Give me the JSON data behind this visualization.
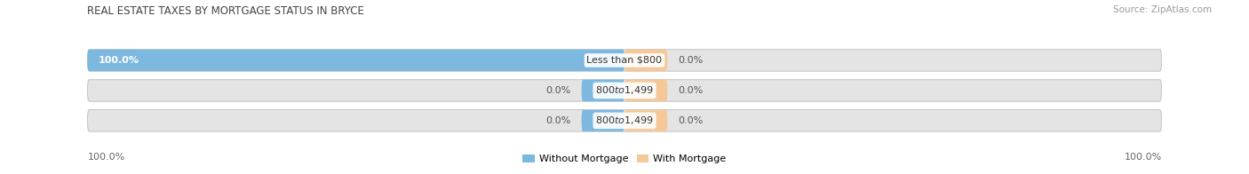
{
  "title": "REAL ESTATE TAXES BY MORTGAGE STATUS IN BRYCE",
  "source": "Source: ZipAtlas.com",
  "categories": [
    "Less than $800",
    "$800 to $1,499",
    "$800 to $1,499"
  ],
  "without_mortgage": [
    100.0,
    0.0,
    0.0
  ],
  "with_mortgage": [
    0.0,
    0.0,
    0.0
  ],
  "without_mortgage_color": "#7db8e0",
  "with_mortgage_color": "#f5c89a",
  "bar_bg_color": "#e4e4e4",
  "bar_bg_color2": "#efefef",
  "title_fontsize": 8.5,
  "source_fontsize": 7.5,
  "tick_fontsize": 8,
  "label_fontsize": 8,
  "bar_label_fontsize": 8,
  "legend_without": "Without Mortgage",
  "legend_with": "With Mortgage"
}
